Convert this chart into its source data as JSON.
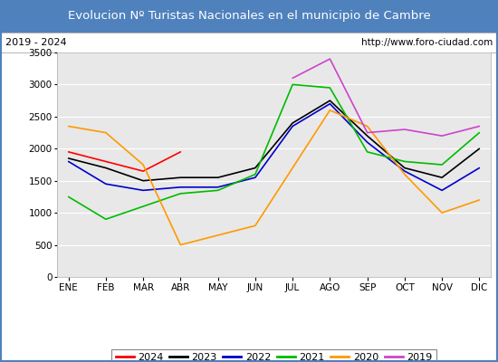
{
  "title": "Evolucion Nº Turistas Nacionales en el municipio de Cambre",
  "subtitle_left": "2019 - 2024",
  "subtitle_right": "http://www.foro-ciudad.com",
  "months": [
    "ENE",
    "FEB",
    "MAR",
    "ABR",
    "MAY",
    "JUN",
    "JUL",
    "AGO",
    "SEP",
    "OCT",
    "NOV",
    "DIC"
  ],
  "series_order": [
    "2024",
    "2023",
    "2022",
    "2021",
    "2020",
    "2019"
  ],
  "series": {
    "2024": {
      "color": "#ff0000",
      "data": [
        1950,
        1800,
        1650,
        1950,
        null,
        null,
        null,
        null,
        null,
        null,
        null,
        null
      ]
    },
    "2023": {
      "color": "#000000",
      "data": [
        1850,
        1700,
        1500,
        1550,
        1550,
        1700,
        2400,
        2750,
        2200,
        1700,
        1550,
        2000
      ]
    },
    "2022": {
      "color": "#0000cc",
      "data": [
        1800,
        1450,
        1350,
        1400,
        1400,
        1550,
        2350,
        2700,
        2100,
        1650,
        1350,
        1700
      ]
    },
    "2021": {
      "color": "#00bb00",
      "data": [
        1250,
        900,
        1100,
        1300,
        1350,
        1600,
        3000,
        2950,
        1950,
        1800,
        1750,
        2250
      ]
    },
    "2020": {
      "color": "#ff9900",
      "data": [
        2350,
        2250,
        1750,
        500,
        650,
        800,
        1700,
        2600,
        2350,
        1600,
        1000,
        1200
      ]
    },
    "2019": {
      "color": "#cc44cc",
      "data": [
        null,
        null,
        null,
        null,
        null,
        null,
        3100,
        3400,
        2250,
        2300,
        2200,
        2350
      ]
    }
  },
  "ylim": [
    0,
    3500
  ],
  "yticks": [
    0,
    500,
    1000,
    1500,
    2000,
    2500,
    3000,
    3500
  ],
  "title_bg_color": "#4f81bd",
  "title_font_color": "#ffffff",
  "plot_bg_color": "#e8e8e8",
  "grid_color": "#ffffff",
  "border_color": "#4f81bd",
  "subtitle_box_color": "#ffffff",
  "legend_box_color": "#ffffff"
}
